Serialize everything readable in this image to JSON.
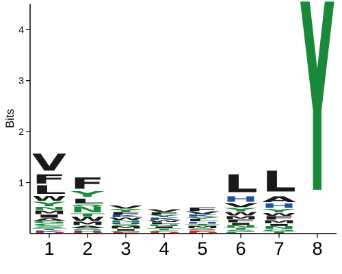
{
  "chart_data": {
    "type": "sequence-logo",
    "ylabel": "Bits",
    "ylim": [
      0,
      4.5
    ],
    "yticks": [
      1,
      2,
      3,
      4
    ],
    "positions": [
      "1",
      "2",
      "3",
      "4",
      "5",
      "6",
      "7",
      "8"
    ],
    "colors": {
      "hydrophobic": "#1a1a1a",
      "polar": "#1a8a3a",
      "basic": "#1f4f9a",
      "acidic": "#d42a2a"
    },
    "stacks": [
      [
        {
          "letter": "D",
          "bits": 0.03,
          "color": "#d42a2a"
        },
        {
          "letter": "K",
          "bits": 0.03,
          "color": "#1f4f9a"
        },
        {
          "letter": "T",
          "bits": 0.04,
          "color": "#1a8a3a"
        },
        {
          "letter": "S",
          "bits": 0.04,
          "color": "#1a8a3a"
        },
        {
          "letter": "C",
          "bits": 0.05,
          "color": "#1a8a3a"
        },
        {
          "letter": "G",
          "bits": 0.05,
          "color": "#1a8a3a"
        },
        {
          "letter": "A",
          "bits": 0.06,
          "color": "#1a1a1a"
        },
        {
          "letter": "I",
          "bits": 0.07,
          "color": "#1a1a1a"
        },
        {
          "letter": "M",
          "bits": 0.08,
          "color": "#1a1a1a"
        },
        {
          "letter": "N",
          "bits": 0.07,
          "color": "#1a8a3a"
        },
        {
          "letter": "Y",
          "bits": 0.1,
          "color": "#1a8a3a"
        },
        {
          "letter": "W",
          "bits": 0.12,
          "color": "#1a1a1a"
        },
        {
          "letter": "L",
          "bits": 0.2,
          "color": "#1a1a1a"
        },
        {
          "letter": "F",
          "bits": 0.22,
          "color": "#1a1a1a"
        },
        {
          "letter": "V",
          "bits": 0.4,
          "color": "#1a1a1a"
        }
      ],
      [
        {
          "letter": "D",
          "bits": 0.03,
          "color": "#d42a2a"
        },
        {
          "letter": "H",
          "bits": 0.03,
          "color": "#1f4f9a"
        },
        {
          "letter": "S",
          "bits": 0.04,
          "color": "#1a8a3a"
        },
        {
          "letter": "A",
          "bits": 0.05,
          "color": "#1a1a1a"
        },
        {
          "letter": "M",
          "bits": 0.08,
          "color": "#1a1a1a"
        },
        {
          "letter": "W",
          "bits": 0.09,
          "color": "#1a1a1a"
        },
        {
          "letter": "T",
          "bits": 0.07,
          "color": "#1a8a3a"
        },
        {
          "letter": "N",
          "bits": 0.14,
          "color": "#1a8a3a"
        },
        {
          "letter": "Q",
          "bits": 0.04,
          "color": "#1a8a3a"
        },
        {
          "letter": "L",
          "bits": 0.12,
          "color": "#1a1a1a"
        },
        {
          "letter": "Y",
          "bits": 0.14,
          "color": "#1a8a3a"
        },
        {
          "letter": "F",
          "bits": 0.27,
          "color": "#1a1a1a"
        }
      ],
      [
        {
          "letter": "E",
          "bits": 0.02,
          "color": "#d42a2a"
        },
        {
          "letter": "G",
          "bits": 0.03,
          "color": "#1a8a3a"
        },
        {
          "letter": "I",
          "bits": 0.04,
          "color": "#1a1a1a"
        },
        {
          "letter": "M",
          "bits": 0.05,
          "color": "#1a1a1a"
        },
        {
          "letter": "S",
          "bits": 0.04,
          "color": "#1a8a3a"
        },
        {
          "letter": "H",
          "bits": 0.04,
          "color": "#1f4f9a"
        },
        {
          "letter": "N",
          "bits": 0.04,
          "color": "#1a8a3a"
        },
        {
          "letter": "W",
          "bits": 0.05,
          "color": "#1a1a1a"
        },
        {
          "letter": "K",
          "bits": 0.05,
          "color": "#1f4f9a"
        },
        {
          "letter": "F",
          "bits": 0.06,
          "color": "#1a1a1a"
        },
        {
          "letter": "Y",
          "bits": 0.06,
          "color": "#1a8a3a"
        },
        {
          "letter": "V",
          "bits": 0.07,
          "color": "#1a1a1a"
        }
      ],
      [
        {
          "letter": "D",
          "bits": 0.03,
          "color": "#d42a2a"
        },
        {
          "letter": "C",
          "bits": 0.03,
          "color": "#1a8a3a"
        },
        {
          "letter": "T",
          "bits": 0.04,
          "color": "#1a8a3a"
        },
        {
          "letter": "I",
          "bits": 0.04,
          "color": "#1a1a1a"
        },
        {
          "letter": "N",
          "bits": 0.04,
          "color": "#1a8a3a"
        },
        {
          "letter": "L",
          "bits": 0.04,
          "color": "#1a1a1a"
        },
        {
          "letter": "W",
          "bits": 0.04,
          "color": "#1a1a1a"
        },
        {
          "letter": "K",
          "bits": 0.05,
          "color": "#1f4f9a"
        },
        {
          "letter": "Y",
          "bits": 0.05,
          "color": "#1a8a3a"
        },
        {
          "letter": "F",
          "bits": 0.05,
          "color": "#1a1a1a"
        },
        {
          "letter": "V",
          "bits": 0.06,
          "color": "#1a1a1a"
        }
      ],
      [
        {
          "letter": "D",
          "bits": 0.03,
          "color": "#d42a2a"
        },
        {
          "letter": "E",
          "bits": 0.03,
          "color": "#d42a2a"
        },
        {
          "letter": "S",
          "bits": 0.04,
          "color": "#1a8a3a"
        },
        {
          "letter": "M",
          "bits": 0.05,
          "color": "#1a1a1a"
        },
        {
          "letter": "T",
          "bits": 0.04,
          "color": "#1a8a3a"
        },
        {
          "letter": "H",
          "bits": 0.04,
          "color": "#1f4f9a"
        },
        {
          "letter": "L",
          "bits": 0.05,
          "color": "#1a1a1a"
        },
        {
          "letter": "Y",
          "bits": 0.04,
          "color": "#1a8a3a"
        },
        {
          "letter": "K",
          "bits": 0.05,
          "color": "#1f4f9a"
        },
        {
          "letter": "V",
          "bits": 0.06,
          "color": "#1a1a1a"
        },
        {
          "letter": "F",
          "bits": 0.08,
          "color": "#1a1a1a"
        }
      ],
      [
        {
          "letter": "C",
          "bits": 0.03,
          "color": "#1a8a3a"
        },
        {
          "letter": "S",
          "bits": 0.04,
          "color": "#1a8a3a"
        },
        {
          "letter": "T",
          "bits": 0.04,
          "color": "#1a8a3a"
        },
        {
          "letter": "N",
          "bits": 0.05,
          "color": "#1a8a3a"
        },
        {
          "letter": "I",
          "bits": 0.05,
          "color": "#1a1a1a"
        },
        {
          "letter": "F",
          "bits": 0.06,
          "color": "#1a1a1a"
        },
        {
          "letter": "M",
          "bits": 0.07,
          "color": "#1a1a1a"
        },
        {
          "letter": "W",
          "bits": 0.08,
          "color": "#1a1a1a"
        },
        {
          "letter": "Y",
          "bits": 0.08,
          "color": "#1a8a3a"
        },
        {
          "letter": "V",
          "bits": 0.1,
          "color": "#1a1a1a"
        },
        {
          "letter": "H",
          "bits": 0.13,
          "color": "#1f4f9a"
        },
        {
          "letter": "L",
          "bits": 0.42,
          "color": "#1a1a1a"
        }
      ],
      [
        {
          "letter": "T",
          "bits": 0.04,
          "color": "#1a8a3a"
        },
        {
          "letter": "G",
          "bits": 0.04,
          "color": "#1a8a3a"
        },
        {
          "letter": "N",
          "bits": 0.06,
          "color": "#1a8a3a"
        },
        {
          "letter": "I",
          "bits": 0.05,
          "color": "#1a1a1a"
        },
        {
          "letter": "M",
          "bits": 0.07,
          "color": "#1a1a1a"
        },
        {
          "letter": "F",
          "bits": 0.08,
          "color": "#1a1a1a"
        },
        {
          "letter": "W",
          "bits": 0.06,
          "color": "#1a1a1a"
        },
        {
          "letter": "Y",
          "bits": 0.08,
          "color": "#1a8a3a"
        },
        {
          "letter": "H",
          "bits": 0.11,
          "color": "#1f4f9a"
        },
        {
          "letter": "A",
          "bits": 0.14,
          "color": "#1a1a1a"
        },
        {
          "letter": "L",
          "bits": 0.5,
          "color": "#1a1a1a"
        }
      ],
      [
        {
          "letter": "Y",
          "bits": 4.5,
          "color": "#1a8a3a"
        }
      ]
    ]
  }
}
